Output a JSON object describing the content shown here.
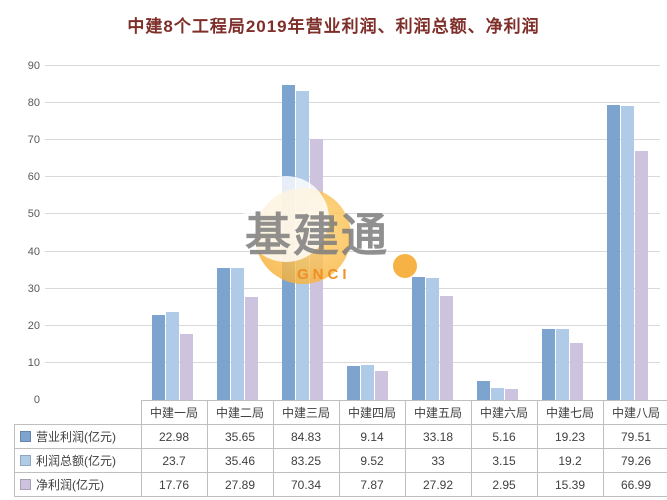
{
  "title": {
    "text": "中建8个工程局2019年营业利润、利润总额、净利润",
    "color": "#7f2f2a"
  },
  "watermark": {
    "text": "基建通",
    "subtext": "GNCI"
  },
  "chart_data": {
    "type": "bar",
    "title": "中建8个工程局2019年营业利润、利润总额、净利润",
    "categories": [
      "中建一局",
      "中建二局",
      "中建三局",
      "中建四局",
      "中建五局",
      "中建六局",
      "中建七局",
      "中建八局"
    ],
    "series": [
      {
        "name": "营业利润(亿元)",
        "color": "#7da3cf",
        "values": [
          22.98,
          35.65,
          84.83,
          9.14,
          33.18,
          5.16,
          19.23,
          79.51
        ]
      },
      {
        "name": "利润总额(亿元)",
        "color": "#afcbe8",
        "values": [
          23.7,
          35.46,
          83.25,
          9.52,
          33,
          3.15,
          19.2,
          79.26
        ]
      },
      {
        "name": "净利润(亿元)",
        "color": "#cec3df",
        "values": [
          17.76,
          27.89,
          70.34,
          7.87,
          27.92,
          2.95,
          15.39,
          66.99
        ]
      }
    ],
    "xlabel": "",
    "ylabel": "",
    "ylim": [
      0,
      90
    ],
    "ytick_step": 10,
    "grid": true,
    "legend_position": "data-table-left",
    "grid_color": "#d9d9d9",
    "axis_label_color": "#595959"
  }
}
